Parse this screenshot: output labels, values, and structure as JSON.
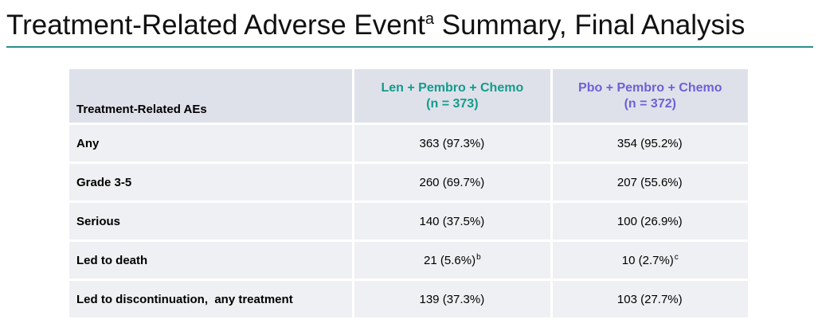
{
  "title": {
    "text": "Treatment-Related Adverse Event",
    "superscript": "a",
    "suffix": " Summary, Final Analysis"
  },
  "colors": {
    "accent_rule": "#2a8f8a",
    "arm1": "#119c8c",
    "arm2": "#6f5fd8",
    "header_bg": "#dfe1ea",
    "row_bg": "#eff0f3"
  },
  "table": {
    "header": {
      "label": "Treatment-Related AEs",
      "arm1_name": "Len + Pembro + Chemo",
      "arm1_n": "(n = 373)",
      "arm2_name": "Pbo + Pembro + Chemo",
      "arm2_n": "(n = 372)"
    },
    "rows": [
      {
        "label": "Any",
        "arm1": "363 (97.3%)",
        "arm1_fn": "",
        "arm2": "354 (95.2%)",
        "arm2_fn": ""
      },
      {
        "label": "Grade 3-5",
        "arm1": "260 (69.7%)",
        "arm1_fn": "",
        "arm2": "207 (55.6%)",
        "arm2_fn": ""
      },
      {
        "label": "Serious",
        "arm1": "140 (37.5%)",
        "arm1_fn": "",
        "arm2": "100 (26.9%)",
        "arm2_fn": ""
      },
      {
        "label": "Led to death",
        "arm1": "21 (5.6%)",
        "arm1_fn": "b",
        "arm2": "10 (2.7%)",
        "arm2_fn": "c"
      },
      {
        "label": "Led to discontinuation,  any treatment",
        "arm1": "139 (37.3%)",
        "arm1_fn": "",
        "arm2": "103 (27.7%)",
        "arm2_fn": ""
      }
    ]
  }
}
